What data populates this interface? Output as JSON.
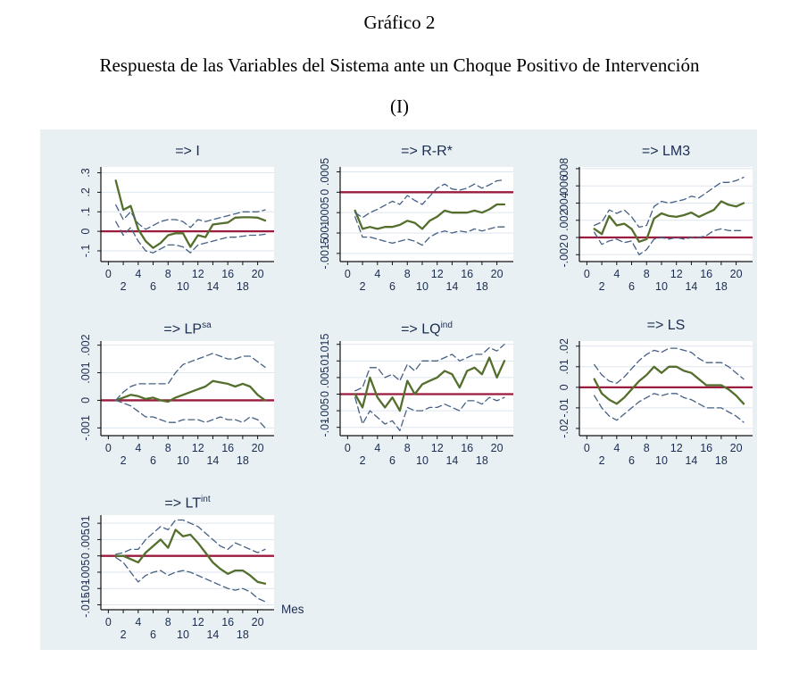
{
  "header": {
    "line1": "Gráfico 2",
    "line2": "Respuesta de las Variables del Sistema ante un Choque Positivo de Intervención",
    "line3": "(I)"
  },
  "colors": {
    "panel_bg": "#e9f0f4",
    "plot_bg": "#ffffff",
    "grid": "#dde6ee",
    "axis": "#111111",
    "label_navy": "#1a2c50",
    "irf_line": "#546f2d",
    "ci_line": "#456084",
    "zero_line": "#9a1b3d"
  },
  "xaxis": {
    "tick_values": [
      0,
      2,
      4,
      6,
      8,
      10,
      12,
      14,
      16,
      18,
      20
    ],
    "x_values": [
      1,
      2,
      3,
      4,
      5,
      6,
      7,
      8,
      9,
      10,
      11,
      12,
      13,
      14,
      15,
      16,
      17,
      18,
      19,
      20,
      21
    ],
    "xmin": -1,
    "xmax": 22.2,
    "label": "Mes"
  },
  "chart_data": [
    {
      "key": "I",
      "type": "line",
      "title": "=> I",
      "title_sup": "",
      "ylim": [
        -0.155,
        0.33
      ],
      "ytick_values": [
        -0.1,
        0,
        0.1,
        0.2,
        0.3
      ],
      "ytick_labels": [
        "-.1",
        "0",
        ".1",
        ".2",
        ".3"
      ],
      "zero_line": 0,
      "series": [
        {
          "name": "irf",
          "values": [
            0.26,
            0.11,
            0.13,
            0.01,
            -0.05,
            -0.085,
            -0.06,
            -0.02,
            -0.01,
            -0.01,
            -0.08,
            -0.02,
            -0.03,
            0.035,
            0.04,
            0.045,
            0.07,
            0.072,
            0.072,
            0.07,
            0.055
          ]
        },
        {
          "name": "ci_upper",
          "values": [
            0.135,
            0.06,
            0.1,
            0.04,
            0.01,
            0.03,
            0.05,
            0.06,
            0.06,
            0.05,
            0.02,
            0.06,
            0.05,
            0.06,
            0.07,
            0.08,
            0.09,
            0.1,
            0.1,
            0.1,
            0.11
          ]
        },
        {
          "name": "ci_lower",
          "values": [
            0.05,
            -0.02,
            0.02,
            -0.05,
            -0.1,
            -0.11,
            -0.09,
            -0.07,
            -0.07,
            -0.08,
            -0.11,
            -0.07,
            -0.06,
            -0.05,
            -0.04,
            -0.03,
            -0.03,
            -0.025,
            -0.02,
            -0.02,
            -0.015
          ]
        }
      ]
    },
    {
      "key": "R-R",
      "type": "line",
      "title": "=> R-R*",
      "title_sup": "",
      "ylim": [
        -0.0017,
        0.00062
      ],
      "ytick_values": [
        -0.0015,
        -0.001,
        -0.0005,
        0,
        0.0005
      ],
      "ytick_labels": [
        "-.0015",
        "-.001",
        "-.0005",
        "0",
        ".0005"
      ],
      "zero_line": 0,
      "series": [
        {
          "name": "irf",
          "values": [
            -0.00045,
            -0.0009,
            -0.00085,
            -0.0009,
            -0.00085,
            -0.00085,
            -0.0008,
            -0.0007,
            -0.00075,
            -0.0009,
            -0.0007,
            -0.0006,
            -0.00045,
            -0.0005,
            -0.0005,
            -0.0005,
            -0.00045,
            -0.0005,
            -0.00042,
            -0.0003,
            -0.0003
          ]
        },
        {
          "name": "ci_upper",
          "values": [
            -0.0005,
            -0.00062,
            -0.0005,
            -0.00042,
            -0.00032,
            -0.00022,
            -0.0003,
            -8e-05,
            -0.0002,
            -0.0003,
            -0.0001,
            0.0001,
            0.0002,
            8e-05,
            5e-05,
            0.0001,
            0.0002,
            0.0001,
            0.00018,
            0.00028,
            0.0003
          ]
        },
        {
          "name": "ci_lower",
          "values": [
            -0.0006,
            -0.0011,
            -0.0011,
            -0.00115,
            -0.0012,
            -0.00125,
            -0.0012,
            -0.00115,
            -0.0012,
            -0.0013,
            -0.0011,
            -0.001,
            -0.00095,
            -0.001,
            -0.00095,
            -0.00098,
            -0.0009,
            -0.00095,
            -0.0009,
            -0.00085,
            -0.00085
          ]
        }
      ]
    },
    {
      "key": "LM3",
      "type": "line",
      "title": "=> LM3",
      "title_sup": "",
      "ylim": [
        -0.0028,
        0.0082
      ],
      "ytick_values": [
        -0.002,
        0,
        0.002,
        0.004,
        0.006,
        0.008
      ],
      "ytick_labels": [
        "-.002",
        "0",
        ".002",
        ".004",
        ".006",
        ".008"
      ],
      "zero_line": 0,
      "series": [
        {
          "name": "irf",
          "values": [
            0.001,
            0.0004,
            0.0025,
            0.0014,
            0.0016,
            0.001,
            -0.0005,
            -0.0002,
            0.0022,
            0.0028,
            0.0025,
            0.0024,
            0.0026,
            0.0029,
            0.0024,
            0.0028,
            0.0032,
            0.0042,
            0.0038,
            0.0036,
            0.004
          ]
        },
        {
          "name": "ci_upper",
          "values": [
            0.0014,
            0.0018,
            0.0032,
            0.0028,
            0.0032,
            0.0024,
            0.0012,
            0.0014,
            0.0036,
            0.0042,
            0.004,
            0.0042,
            0.0044,
            0.0048,
            0.0046,
            0.0052,
            0.0058,
            0.0064,
            0.0064,
            0.0066,
            0.007
          ]
        },
        {
          "name": "ci_lower",
          "values": [
            0.0006,
            -0.0008,
            -0.0004,
            -0.0002,
            -0.0006,
            -0.0004,
            -0.002,
            -0.0014,
            -0.0002,
            0.0,
            -0.0002,
            0.0,
            -0.0002,
            0.0,
            0.0,
            0.0002,
            0.0008,
            0.001,
            0.0008,
            0.0008,
            0.0008
          ]
        }
      ]
    },
    {
      "key": "LPsa",
      "type": "line",
      "title": "=> LP",
      "title_sup": "sa",
      "ylim": [
        -0.00128,
        0.00215
      ],
      "ytick_values": [
        -0.001,
        0,
        0.001,
        0.002
      ],
      "ytick_labels": [
        "-.001",
        "0",
        ".001",
        ".002"
      ],
      "zero_line": 0,
      "series": [
        {
          "name": "irf",
          "values": [
            0.0,
            0.0001,
            0.0002,
            0.00015,
            5e-05,
            0.0001,
            0.0,
            -5e-05,
            0.0001,
            0.0002,
            0.0003,
            0.0004,
            0.0005,
            0.0007,
            0.00065,
            0.0006,
            0.0005,
            0.0006,
            0.0005,
            0.0002,
            0.0
          ]
        },
        {
          "name": "ci_upper",
          "values": [
            0.0,
            0.0003,
            0.0005,
            0.0006,
            0.0006,
            0.0006,
            0.0006,
            0.0006,
            0.001,
            0.0013,
            0.0014,
            0.0015,
            0.0016,
            0.0017,
            0.0016,
            0.0015,
            0.0015,
            0.0016,
            0.0016,
            0.0014,
            0.0012
          ]
        },
        {
          "name": "ci_lower",
          "values": [
            0.0,
            -0.0001,
            -0.0002,
            -0.0004,
            -0.0006,
            -0.0006,
            -0.0007,
            -0.0008,
            -0.0008,
            -0.0007,
            -0.0007,
            -0.0007,
            -0.0008,
            -0.0007,
            -0.0006,
            -0.0007,
            -0.0007,
            -0.0008,
            -0.0006,
            -0.0007,
            -0.001
          ]
        }
      ]
    },
    {
      "key": "LQind",
      "type": "line",
      "title": "=> LQ",
      "title_sup": "ind",
      "ylim": [
        -0.0125,
        0.016
      ],
      "ytick_values": [
        -0.01,
        -0.005,
        0,
        0.005,
        0.01,
        0.015
      ],
      "ytick_labels": [
        "-.01",
        "-.005",
        "0",
        ".005",
        ".01",
        ".015"
      ],
      "zero_line": 0,
      "series": [
        {
          "name": "irf",
          "values": [
            0.0,
            -0.004,
            0.005,
            -0.001,
            -0.004,
            -0.001,
            -0.005,
            0.004,
            0.0,
            0.003,
            0.004,
            0.005,
            0.007,
            0.006,
            0.002,
            0.007,
            0.008,
            0.006,
            0.011,
            0.005,
            0.01
          ]
        },
        {
          "name": "ci_upper",
          "values": [
            0.001,
            0.002,
            0.008,
            0.008,
            0.005,
            0.006,
            0.004,
            0.009,
            0.007,
            0.01,
            0.01,
            0.01,
            0.011,
            0.012,
            0.01,
            0.011,
            0.012,
            0.012,
            0.014,
            0.013,
            0.015
          ]
        },
        {
          "name": "ci_lower",
          "values": [
            -0.001,
            -0.009,
            -0.005,
            -0.007,
            -0.009,
            -0.008,
            -0.011,
            -0.004,
            -0.005,
            -0.005,
            -0.004,
            -0.004,
            -0.003,
            -0.004,
            -0.005,
            -0.002,
            -0.002,
            -0.003,
            -0.001,
            -0.002,
            -0.001
          ]
        }
      ]
    },
    {
      "key": "LS",
      "type": "line",
      "title": "=> LS",
      "title_sup": "",
      "ylim": [
        -0.0235,
        0.0225
      ],
      "ytick_values": [
        -0.02,
        -0.01,
        0,
        0.01,
        0.02
      ],
      "ytick_labels": [
        "-.02",
        "-.01",
        "0",
        ".01",
        ".02"
      ],
      "zero_line": 0,
      "series": [
        {
          "name": "irf",
          "values": [
            0.004,
            -0.003,
            -0.006,
            -0.008,
            -0.005,
            -0.001,
            0.003,
            0.006,
            0.01,
            0.007,
            0.01,
            0.01,
            0.008,
            0.007,
            0.004,
            0.001,
            0.001,
            0.001,
            -0.001,
            -0.004,
            -0.008
          ]
        },
        {
          "name": "ci_upper",
          "values": [
            0.011,
            0.006,
            0.003,
            0.002,
            0.005,
            0.009,
            0.013,
            0.016,
            0.018,
            0.017,
            0.019,
            0.019,
            0.018,
            0.017,
            0.014,
            0.012,
            0.012,
            0.012,
            0.01,
            0.007,
            0.004
          ]
        },
        {
          "name": "ci_lower",
          "values": [
            -0.004,
            -0.01,
            -0.014,
            -0.016,
            -0.013,
            -0.01,
            -0.007,
            -0.005,
            -0.003,
            -0.004,
            -0.003,
            -0.003,
            -0.005,
            -0.006,
            -0.008,
            -0.01,
            -0.01,
            -0.01,
            -0.012,
            -0.014,
            -0.017
          ]
        }
      ]
    },
    {
      "key": "LTint",
      "type": "line",
      "title": "=> LT",
      "title_sup": "int",
      "xlabel": "Mes",
      "ylim": [
        -0.0165,
        0.0125
      ],
      "ytick_values": [
        -0.015,
        -0.01,
        -0.005,
        0,
        0.005,
        0.01
      ],
      "ytick_labels": [
        "-.015",
        "-.01",
        "-.005",
        "0",
        ".005",
        ".01"
      ],
      "zero_line": 0,
      "series": [
        {
          "name": "irf",
          "values": [
            0.0,
            0.0,
            -0.001,
            -0.002,
            0.001,
            0.003,
            0.005,
            0.0025,
            0.008,
            0.006,
            0.0065,
            0.004,
            0.001,
            -0.002,
            -0.004,
            -0.0055,
            -0.0045,
            -0.0045,
            -0.006,
            -0.008,
            -0.0085
          ]
        },
        {
          "name": "ci_upper",
          "values": [
            0.0005,
            0.001,
            0.002,
            0.002,
            0.005,
            0.007,
            0.009,
            0.008,
            0.011,
            0.011,
            0.01,
            0.009,
            0.007,
            0.005,
            0.003,
            0.002,
            0.004,
            0.003,
            0.002,
            0.001,
            0.002
          ]
        },
        {
          "name": "ci_lower",
          "values": [
            -0.0005,
            -0.002,
            -0.005,
            -0.008,
            -0.006,
            -0.005,
            -0.0045,
            -0.006,
            -0.005,
            -0.0045,
            -0.005,
            -0.006,
            -0.007,
            -0.008,
            -0.009,
            -0.01,
            -0.0105,
            -0.01,
            -0.011,
            -0.013,
            -0.014
          ]
        }
      ]
    }
  ]
}
